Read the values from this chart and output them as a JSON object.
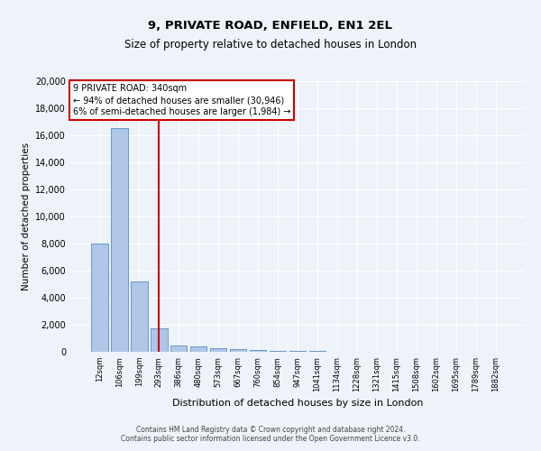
{
  "title1": "9, PRIVATE ROAD, ENFIELD, EN1 2EL",
  "title2": "Size of property relative to detached houses in London",
  "xlabel": "Distribution of detached houses by size in London",
  "ylabel": "Number of detached properties",
  "categories": [
    "12sqm",
    "106sqm",
    "199sqm",
    "293sqm",
    "386sqm",
    "480sqm",
    "573sqm",
    "667sqm",
    "760sqm",
    "854sqm",
    "947sqm",
    "1041sqm",
    "1134sqm",
    "1228sqm",
    "1321sqm",
    "1415sqm",
    "1508sqm",
    "1602sqm",
    "1695sqm",
    "1789sqm",
    "1882sqm"
  ],
  "values": [
    8000,
    16500,
    5200,
    1750,
    500,
    380,
    270,
    175,
    130,
    80,
    50,
    40,
    30,
    20,
    15,
    10,
    8,
    5,
    3,
    2,
    1
  ],
  "bar_color": "#aec6e8",
  "bar_edge_color": "#5a8fc2",
  "vline_x_index": 3,
  "vline_color": "#cc0000",
  "annotation_line1": "9 PRIVATE ROAD: 340sqm",
  "annotation_line2": "← 94% of detached houses are smaller (30,946)",
  "annotation_line3": "6% of semi-detached houses are larger (1,984) →",
  "annotation_box_color": "#ffffff",
  "annotation_box_edge": "#cc0000",
  "ylim": [
    0,
    20000
  ],
  "yticks": [
    0,
    2000,
    4000,
    6000,
    8000,
    10000,
    12000,
    14000,
    16000,
    18000,
    20000
  ],
  "footer1": "Contains HM Land Registry data © Crown copyright and database right 2024.",
  "footer2": "Contains public sector information licensed under the Open Government Licence v3.0.",
  "bg_color": "#eef2f9",
  "plot_bg_color": "#eef2f9",
  "grid_color": "#ffffff",
  "title1_fontsize": 9.5,
  "title2_fontsize": 8.5,
  "ylabel_fontsize": 7.5,
  "xlabel_fontsize": 8,
  "xtick_fontsize": 6,
  "ytick_fontsize": 7,
  "footer_fontsize": 5.5,
  "annot_fontsize": 7
}
